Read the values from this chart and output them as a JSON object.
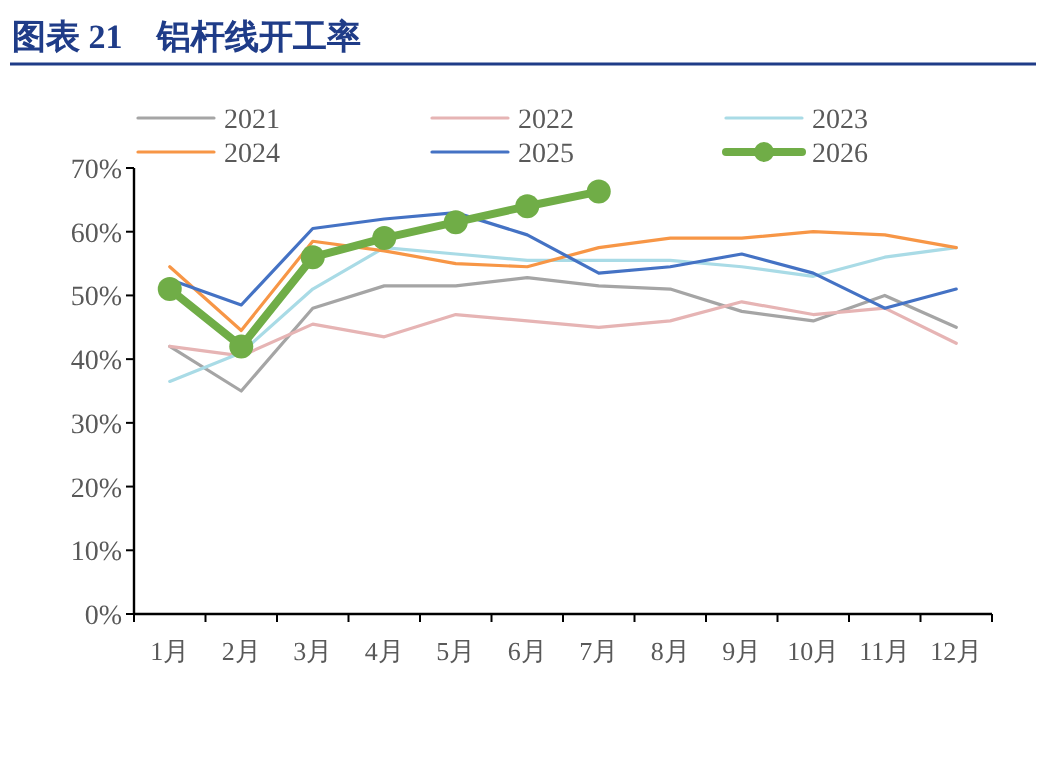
{
  "chart_data": {
    "type": "line",
    "title": "图表 21　铝杆线开工率",
    "categories": [
      "1月",
      "2月",
      "3月",
      "4月",
      "5月",
      "6月",
      "7月",
      "8月",
      "9月",
      "10月",
      "11月",
      "12月"
    ],
    "series": [
      {
        "name": "2021",
        "color": "#a5a5a5",
        "values": [
          42,
          35,
          48,
          51.5,
          51.5,
          52.8,
          51.5,
          51,
          47.5,
          46,
          50,
          45
        ]
      },
      {
        "name": "2022",
        "color": "#e6b4b4",
        "values": [
          42,
          40.5,
          45.5,
          43.5,
          47,
          46,
          45,
          46,
          49,
          47,
          48,
          42.5
        ]
      },
      {
        "name": "2023",
        "color": "#a9dbe6",
        "values": [
          36.5,
          41,
          51,
          57.5,
          56.5,
          55.5,
          55.5,
          55.5,
          54.5,
          53,
          56,
          57.5
        ]
      },
      {
        "name": "2024",
        "color": "#f79646",
        "values": [
          54.5,
          44.5,
          58.5,
          57,
          55,
          54.5,
          57.5,
          59,
          59,
          60,
          59.5,
          57.5
        ]
      },
      {
        "name": "2025",
        "color": "#4472c4",
        "values": [
          52.5,
          48.5,
          60.5,
          62,
          63,
          59.5,
          53.5,
          54.5,
          56.5,
          53.5,
          48,
          51
        ]
      },
      {
        "name": "2026",
        "color": "#70ad47",
        "marker": "circle",
        "values": [
          51,
          42,
          56,
          59,
          61.5,
          64,
          66.3,
          null,
          null,
          null,
          null,
          null
        ]
      }
    ],
    "ylim": [
      0,
      70
    ],
    "yticks": [
      {
        "value": 0,
        "label": "0%"
      },
      {
        "value": 10,
        "label": "10%"
      },
      {
        "value": 20,
        "label": "20%"
      },
      {
        "value": 30,
        "label": "30%"
      },
      {
        "value": 40,
        "label": "40%"
      },
      {
        "value": 50,
        "label": "50%"
      },
      {
        "value": 60,
        "label": "60%"
      },
      {
        "value": 70,
        "label": "70%"
      }
    ],
    "grid": false,
    "legend": "top"
  }
}
